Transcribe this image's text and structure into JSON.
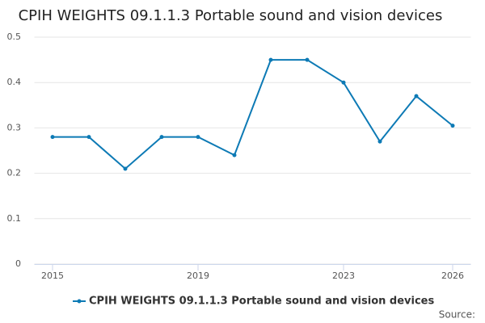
{
  "chart_data": {
    "type": "line",
    "title": "CPIH WEIGHTS 09.1.1.3 Portable sound and vision devices",
    "x": [
      2015,
      2016,
      2017,
      2018,
      2019,
      2020,
      2021,
      2022,
      2023,
      2024,
      2025,
      2026
    ],
    "series": [
      {
        "name": "CPIH WEIGHTS 09.1.1.3 Portable sound and vision devices",
        "color": "#0d7ab5",
        "values": [
          0.28,
          0.28,
          0.21,
          0.28,
          0.28,
          0.24,
          0.45,
          0.45,
          0.4,
          0.27,
          0.37,
          0.305
        ]
      }
    ],
    "xlim": [
      2014.5,
      2026.5
    ],
    "xticks": [
      2015,
      2019,
      2023,
      2026
    ],
    "ylim": [
      0,
      0.5
    ],
    "yticks": [
      0,
      0.1,
      0.2,
      0.3,
      0.4,
      0.5
    ],
    "grid": true,
    "legend": "bottom",
    "source": "Source:"
  }
}
